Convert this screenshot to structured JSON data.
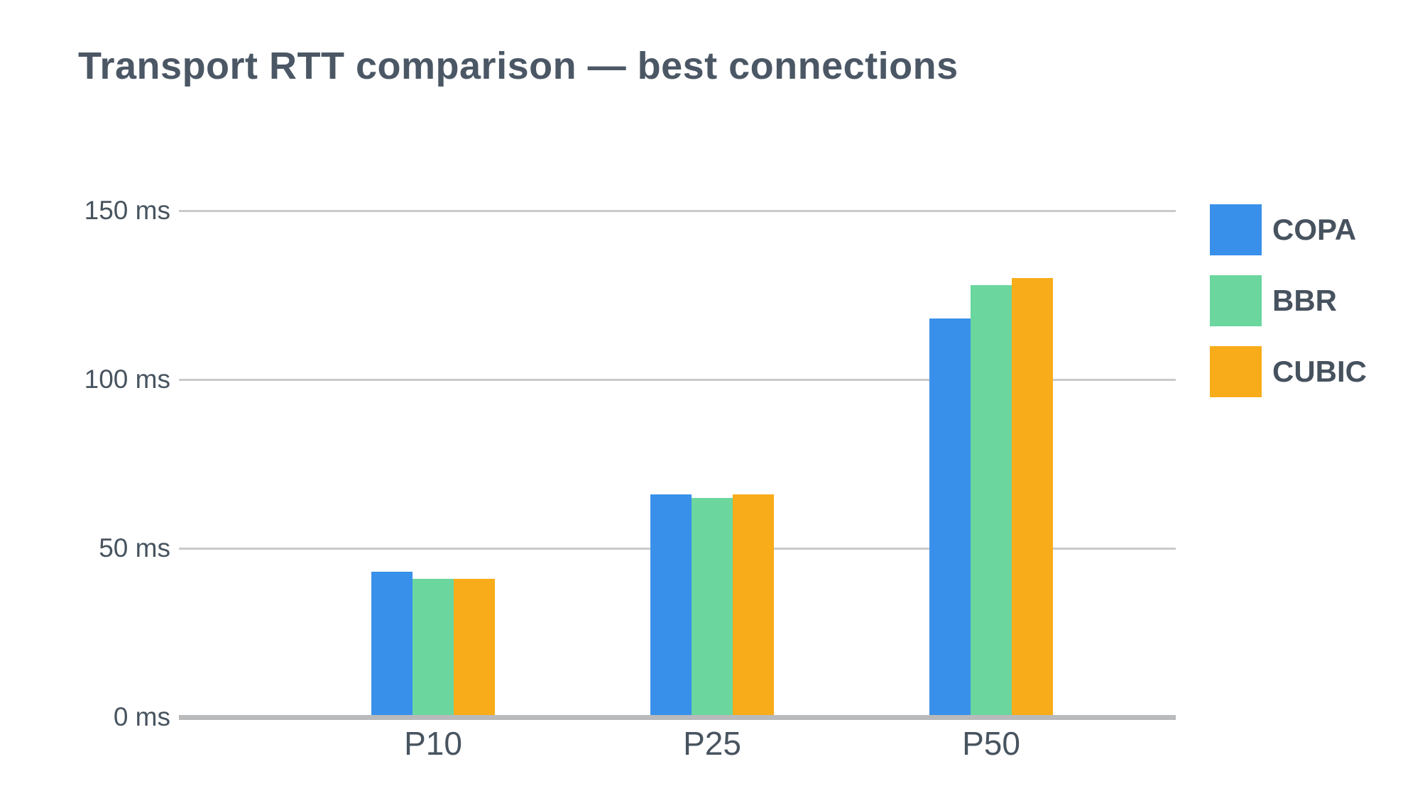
{
  "title": "Transport RTT comparison — best connections",
  "colors": {
    "background": "#ffffff",
    "title_text": "#4b5765",
    "axis_label_text": "#48545f",
    "legend_text": "#47525f",
    "gridline": "#c9cacb",
    "axis_line": "#b9babc"
  },
  "chart_data": {
    "type": "bar",
    "title": "Transport RTT comparison — best connections",
    "categories": [
      "P10",
      "P25",
      "P50"
    ],
    "series": [
      {
        "name": "COPA",
        "color": "#3990ea",
        "values": [
          43,
          66,
          118
        ]
      },
      {
        "name": "BBR",
        "color": "#6bd69e",
        "values": [
          41,
          65,
          128
        ]
      },
      {
        "name": "CUBIC",
        "color": "#f8ac19",
        "values": [
          41,
          66,
          130
        ]
      }
    ],
    "xlabel": "",
    "ylabel": "",
    "unit": "ms",
    "ylim": [
      0,
      150
    ],
    "y_tick_values": [
      0,
      50,
      100,
      150
    ],
    "y_tick_labels": [
      "0 ms",
      "50 ms",
      "100 ms",
      "150 ms"
    ],
    "grid": true,
    "legend_position": "right"
  },
  "legend": {
    "items": [
      "COPA",
      "BBR",
      "CUBIC"
    ]
  }
}
